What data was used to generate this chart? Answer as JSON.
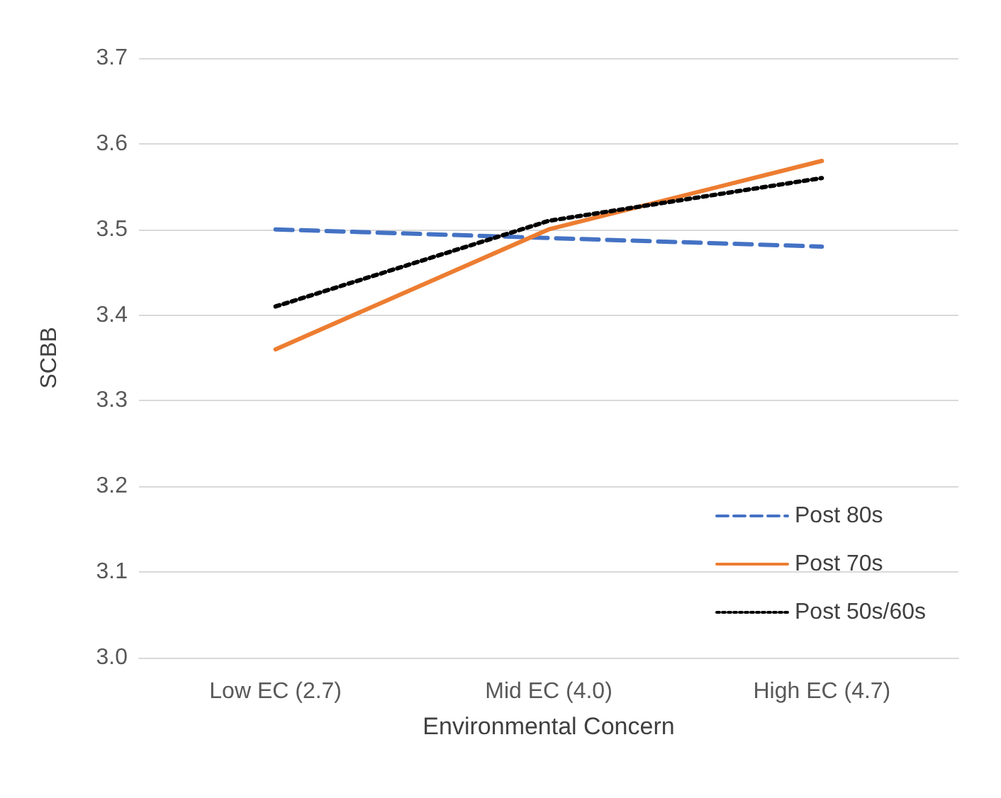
{
  "chart_data": {
    "type": "line",
    "xlabel": "Environmental Concern",
    "ylabel": "SCBB",
    "categories": [
      "Low EC (2.7)",
      "Mid EC (4.0)",
      "High EC (4.7)"
    ],
    "series": [
      {
        "name": "Post 80s",
        "color": "#4472c4",
        "line_style": "dashed",
        "values": [
          3.5,
          3.49,
          3.48
        ]
      },
      {
        "name": "Post 70s",
        "color": "#ed7d31",
        "line_style": "solid",
        "values": [
          3.36,
          3.5,
          3.58
        ]
      },
      {
        "name": "Post 50s/60s",
        "color": "#000000",
        "line_style": "dotted",
        "values": [
          3.41,
          3.51,
          3.56
        ]
      }
    ],
    "ylim": [
      3.0,
      3.7
    ],
    "yticks": [
      {
        "value": 3.0,
        "label": "3.0"
      },
      3.1,
      3.2,
      3.3,
      3.4,
      3.5,
      3.6,
      3.7
    ],
    "grid": "y",
    "legend": "bottom right",
    "marker": "none"
  }
}
